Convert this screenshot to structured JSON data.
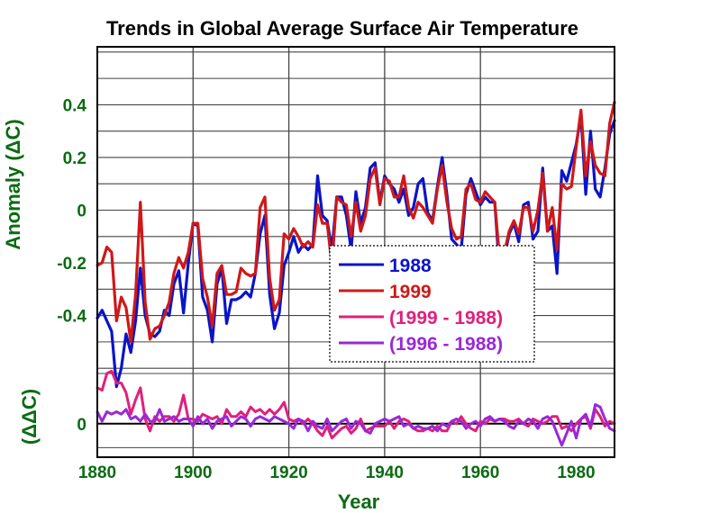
{
  "chart_data": {
    "type": "line",
    "title": "Trends in Global Average Surface Air Temperature",
    "xlabel": "Year",
    "ylabel_top": "Anomaly (ΔC)",
    "ylabel_bottom": "(ΔΔC)",
    "xlim": [
      1880,
      1988
    ],
    "xticks": [
      "1880",
      "1900",
      "1920",
      "1940",
      "1960",
      "1980"
    ],
    "top_panel": {
      "ylim": [
        -0.62,
        0.62
      ],
      "yticks": [
        "0.4",
        "0.2",
        "0",
        "-0.2",
        "-0.4"
      ],
      "x": [
        1880,
        1881,
        1882,
        1883,
        1884,
        1885,
        1886,
        1887,
        1888,
        1889,
        1890,
        1891,
        1892,
        1893,
        1894,
        1895,
        1896,
        1897,
        1898,
        1899,
        1900,
        1901,
        1902,
        1903,
        1904,
        1905,
        1906,
        1907,
        1908,
        1909,
        1910,
        1911,
        1912,
        1913,
        1914,
        1915,
        1916,
        1917,
        1918,
        1919,
        1920,
        1921,
        1922,
        1923,
        1924,
        1925,
        1926,
        1927,
        1928,
        1929,
        1930,
        1931,
        1932,
        1933,
        1934,
        1935,
        1936,
        1937,
        1938,
        1939,
        1940,
        1941,
        1942,
        1943,
        1944,
        1945,
        1946,
        1947,
        1948,
        1949,
        1950,
        1951,
        1952,
        1953,
        1954,
        1955,
        1956,
        1957,
        1958,
        1959,
        1960,
        1961,
        1962,
        1963,
        1964,
        1965,
        1966,
        1967,
        1968,
        1969,
        1970,
        1971,
        1972,
        1973,
        1974,
        1975,
        1976,
        1977,
        1978,
        1979,
        1980,
        1981,
        1982,
        1983,
        1984,
        1985,
        1986,
        1987,
        1988
      ],
      "series": [
        {
          "name": "1988",
          "color": "#0a14c8",
          "values": [
            -0.41,
            -0.38,
            -0.42,
            -0.46,
            -0.67,
            -0.6,
            -0.47,
            -0.54,
            -0.42,
            -0.22,
            -0.4,
            -0.47,
            -0.48,
            -0.46,
            -0.38,
            -0.4,
            -0.28,
            -0.23,
            -0.39,
            -0.2,
            -0.05,
            -0.06,
            -0.33,
            -0.38,
            -0.5,
            -0.28,
            -0.22,
            -0.43,
            -0.34,
            -0.34,
            -0.33,
            -0.31,
            -0.33,
            -0.24,
            -0.09,
            -0.02,
            -0.32,
            -0.45,
            -0.39,
            -0.21,
            -0.16,
            -0.1,
            -0.16,
            -0.13,
            -0.15,
            -0.13,
            0.13,
            -0.02,
            -0.04,
            -0.15,
            0.05,
            0.05,
            -0.02,
            -0.15,
            0.07,
            -0.05,
            0.01,
            0.16,
            0.18,
            0.03,
            0.13,
            0.1,
            0.08,
            0.03,
            0.08,
            -0.02,
            0.01,
            0.1,
            0.12,
            -0.01,
            -0.04,
            0.09,
            0.2,
            0.06,
            -0.11,
            -0.13,
            -0.15,
            0.06,
            0.12,
            0.07,
            0.02,
            0.05,
            0.03,
            0.03,
            -0.23,
            -0.18,
            -0.09,
            -0.05,
            -0.12,
            0.02,
            0.03,
            -0.11,
            -0.08,
            0.16,
            -0.08,
            -0.06,
            -0.24,
            0.15,
            0.11,
            0.18,
            0.25,
            0.36,
            0.06,
            0.3,
            0.08,
            0.05,
            0.16,
            0.29,
            0.34
          ]
        },
        {
          "name": "1999",
          "color": "#d01818",
          "values": [
            -0.21,
            -0.2,
            -0.14,
            -0.16,
            -0.42,
            -0.33,
            -0.37,
            -0.5,
            -0.32,
            0.03,
            -0.35,
            -0.49,
            -0.45,
            -0.44,
            -0.4,
            -0.35,
            -0.24,
            -0.18,
            -0.22,
            -0.16,
            -0.05,
            -0.05,
            -0.26,
            -0.33,
            -0.44,
            -0.24,
            -0.21,
            -0.32,
            -0.32,
            -0.31,
            -0.22,
            -0.24,
            -0.25,
            -0.24,
            0.01,
            0.05,
            -0.26,
            -0.38,
            -0.34,
            -0.09,
            -0.11,
            -0.07,
            -0.1,
            -0.14,
            -0.12,
            -0.14,
            0.02,
            -0.05,
            -0.05,
            -0.21,
            0.05,
            0.03,
            0.02,
            -0.1,
            0.03,
            -0.08,
            -0.02,
            0.12,
            0.16,
            0.02,
            0.12,
            0.11,
            0.05,
            0.05,
            0.13,
            0.01,
            -0.03,
            0.03,
            0.01,
            -0.02,
            -0.05,
            0.08,
            0.17,
            0.03,
            -0.07,
            -0.11,
            -0.1,
            0.08,
            0.1,
            0.04,
            0.03,
            0.07,
            0.05,
            0.03,
            -0.18,
            -0.16,
            -0.08,
            -0.04,
            -0.09,
            0.01,
            0.01,
            -0.08,
            0.0,
            0.14,
            -0.08,
            0.01,
            -0.15,
            0.1,
            0.08,
            0.09,
            0.24,
            0.38,
            0.13,
            0.26,
            0.17,
            0.14,
            0.13,
            0.33,
            0.41
          ]
        }
      ]
    },
    "bottom_panel": {
      "ylim": [
        -0.14,
        0.21
      ],
      "yticks": [
        "0"
      ],
      "x": [
        1880,
        1881,
        1882,
        1883,
        1884,
        1885,
        1886,
        1887,
        1888,
        1889,
        1890,
        1891,
        1892,
        1893,
        1894,
        1895,
        1896,
        1897,
        1898,
        1899,
        1900,
        1901,
        1902,
        1903,
        1904,
        1905,
        1906,
        1907,
        1908,
        1909,
        1910,
        1911,
        1912,
        1913,
        1914,
        1915,
        1916,
        1917,
        1918,
        1919,
        1920,
        1921,
        1922,
        1923,
        1924,
        1925,
        1926,
        1927,
        1928,
        1929,
        1930,
        1931,
        1932,
        1933,
        1934,
        1935,
        1936,
        1937,
        1938,
        1939,
        1940,
        1941,
        1942,
        1943,
        1944,
        1945,
        1946,
        1947,
        1948,
        1949,
        1950,
        1951,
        1952,
        1953,
        1954,
        1955,
        1956,
        1957,
        1958,
        1959,
        1960,
        1961,
        1962,
        1963,
        1964,
        1965,
        1966,
        1967,
        1968,
        1969,
        1970,
        1971,
        1972,
        1973,
        1974,
        1975,
        1976,
        1977,
        1978,
        1979,
        1980,
        1981,
        1982,
        1983,
        1984,
        1985,
        1986,
        1987,
        1988
      ],
      "series": [
        {
          "name": "(1999 - 1988)",
          "color": "#e0207a",
          "values": [
            0.15,
            0.14,
            0.21,
            0.22,
            0.17,
            0.17,
            0.13,
            0.04,
            0.1,
            0.15,
            0.02,
            -0.03,
            0.03,
            0.01,
            0.03,
            0.03,
            0.01,
            0.04,
            0.12,
            0.02,
            0.02,
            0.01,
            0.04,
            0.03,
            0.02,
            0.03,
            0.0,
            0.06,
            0.03,
            0.03,
            0.05,
            0.03,
            0.07,
            0.05,
            0.06,
            0.04,
            0.06,
            0.04,
            0.06,
            0.09,
            0.02,
            0.01,
            0.02,
            0.0,
            0.02,
            0.0,
            -0.03,
            -0.05,
            -0.01,
            -0.06,
            -0.04,
            -0.02,
            -0.01,
            -0.04,
            -0.02,
            0.02,
            -0.03,
            -0.02,
            -0.01,
            -0.01,
            -0.01,
            0.01,
            -0.02,
            0.01,
            0.02,
            0.01,
            -0.02,
            -0.03,
            -0.03,
            -0.02,
            -0.03,
            -0.01,
            -0.03,
            -0.03,
            0.01,
            0.0,
            0.03,
            0.0,
            -0.02,
            -0.03,
            0.01,
            0.0,
            0.02,
            0.01,
            0.02,
            0.02,
            0.01,
            0.01,
            0.02,
            0.0,
            -0.01,
            0.02,
            0.01,
            0.0,
            0.01,
            0.03,
            0.03,
            -0.02,
            -0.01,
            -0.03,
            0.0,
            0.02,
            0.03,
            -0.02,
            0.06,
            0.03,
            -0.01,
            0.01,
            0.0
          ]
        },
        {
          "name": "(1996 - 1988)",
          "color": "#9a28d8",
          "values": [
            0.05,
            0.01,
            0.05,
            0.04,
            0.05,
            0.04,
            0.06,
            0.02,
            0.03,
            0.01,
            0.04,
            0.01,
            0.01,
            0.06,
            0.01,
            0.02,
            0.03,
            0.01,
            0.02,
            0.02,
            -0.01,
            0.03,
            0.0,
            0.02,
            -0.02,
            0.01,
            0.02,
            0.03,
            -0.01,
            0.01,
            0.03,
            0.02,
            -0.01,
            0.02,
            0.03,
            0.02,
            0.01,
            0.03,
            0.02,
            0.01,
            0.0,
            -0.02,
            0.02,
            0.01,
            -0.03,
            0.01,
            -0.01,
            -0.02,
            0.02,
            -0.03,
            -0.01,
            0.01,
            0.02,
            -0.02,
            0.01,
            0.0,
            -0.03,
            -0.04,
            0.0,
            0.01,
            0.02,
            0.01,
            0.02,
            0.03,
            -0.01,
            0.0,
            -0.02,
            -0.01,
            -0.02,
            -0.02,
            -0.01,
            -0.03,
            0.0,
            -0.01,
            0.01,
            0.02,
            0.01,
            -0.02,
            0.0,
            0.01,
            -0.01,
            0.02,
            0.03,
            0.01,
            0.02,
            0.01,
            -0.01,
            -0.02,
            0.01,
            0.0,
            0.02,
            0.01,
            -0.02,
            0.02,
            0.03,
            0.01,
            -0.04,
            -0.09,
            -0.04,
            0.01,
            -0.06,
            0.02,
            0.04,
            -0.01,
            0.08,
            0.07,
            0.02,
            -0.02,
            -0.03
          ]
        }
      ]
    },
    "legend": {
      "placement": "center-right",
      "entries": [
        {
          "label": "1988",
          "color": "#0a14c8"
        },
        {
          "label": "1999",
          "color": "#d01818"
        },
        {
          "label": "(1999 - 1988)",
          "color": "#e0207a"
        },
        {
          "label": "(1996 - 1988)",
          "color": "#9a28d8"
        }
      ]
    },
    "grid": true,
    "label_color": "#0b6b12"
  }
}
